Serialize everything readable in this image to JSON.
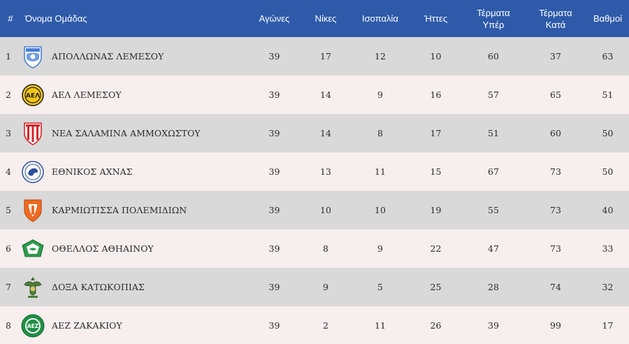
{
  "headers": {
    "rank": "#",
    "team": "Όνομα Ομάδας",
    "played": "Αγώνες",
    "wins": "Νίκες",
    "draws": "Ισοπαλία",
    "losses": "Ήττες",
    "goals_for_1": "Τέρματα",
    "goals_for_2": "Υπέρ",
    "goals_against_1": "Τέρματα",
    "goals_against_2": "Κατά",
    "points": "Βαθμοί"
  },
  "rows": [
    {
      "rank": "1",
      "team": "ΑΠΟΛΛΩΝΑΣ ΛΕΜΕΣΟΥ",
      "logo": "apollon-crest-icon",
      "played": "39",
      "wins": "17",
      "draws": "12",
      "losses": "10",
      "gf": "60",
      "ga": "37",
      "points": "63"
    },
    {
      "rank": "2",
      "team": "ΑΕΛ ΛΕΜΕΣΟΥ",
      "logo": "ael-crest-icon",
      "played": "39",
      "wins": "14",
      "draws": "9",
      "losses": "16",
      "gf": "57",
      "ga": "65",
      "points": "51"
    },
    {
      "rank": "3",
      "team": "ΝΕΑ ΣΑΛΑΜΙΝΑ ΑΜΜΟΧΩΣΤΟΥ",
      "logo": "nea-salamina-crest-icon",
      "played": "39",
      "wins": "14",
      "draws": "8",
      "losses": "17",
      "gf": "51",
      "ga": "60",
      "points": "50"
    },
    {
      "rank": "4",
      "team": "ΕΘΝΙΚΟΣ ΑΧΝΑΣ",
      "logo": "ethnikos-crest-icon",
      "played": "39",
      "wins": "13",
      "draws": "11",
      "losses": "15",
      "gf": "67",
      "ga": "73",
      "points": "50"
    },
    {
      "rank": "5",
      "team": "ΚΑΡΜΙΩΤΙΣΣΑ ΠΟΛΕΜΙΔΙΩΝ",
      "logo": "karmiotissa-crest-icon",
      "played": "39",
      "wins": "10",
      "draws": "10",
      "losses": "19",
      "gf": "55",
      "ga": "73",
      "points": "40"
    },
    {
      "rank": "6",
      "team": "ΟΘΕΛΛΟΣ ΑΘΗΑΙΝΟΥ",
      "logo": "othellos-crest-icon",
      "played": "39",
      "wins": "8",
      "draws": "9",
      "losses": "22",
      "gf": "47",
      "ga": "73",
      "points": "33"
    },
    {
      "rank": "7",
      "team": "ΔΟΞΑ ΚΑΤΩΚΟΠΙΑΣ",
      "logo": "doxa-crest-icon",
      "played": "39",
      "wins": "9",
      "draws": "5",
      "losses": "25",
      "gf": "28",
      "ga": "74",
      "points": "32"
    },
    {
      "rank": "8",
      "team": "ΑΕΖ ΖΑΚΑΚΙΟΥ",
      "logo": "aez-crest-icon",
      "played": "39",
      "wins": "2",
      "draws": "11",
      "losses": "26",
      "gf": "39",
      "ga": "99",
      "points": "17"
    }
  ],
  "colors": {
    "header_bg": "#2e5aa9",
    "row_odd": "#d9d9d9",
    "row_even": "#f7eeee"
  }
}
